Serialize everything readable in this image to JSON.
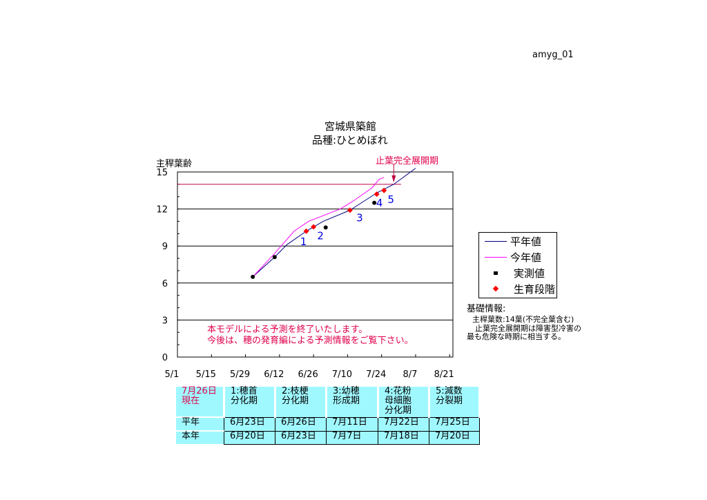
{
  "page_id": "amyg_01",
  "chart_data": {
    "type": "line",
    "title": "宮城県築館",
    "subtitle": "品種:ひとめぼれ",
    "ylabel": "主稈葉齢",
    "ylim": [
      0,
      15
    ],
    "yticks": [
      "0",
      "3",
      "6",
      "9",
      "12",
      "15"
    ],
    "xticks": [
      "5/1",
      "5/15",
      "5/29",
      "6/12",
      "6/26",
      "7/10",
      "7/24",
      "8/7",
      "8/21"
    ],
    "xlim": [
      "5/1",
      "8/21"
    ],
    "grid": "horizontal",
    "colors": {
      "normal": "#000080",
      "this_year": "#ff00ff",
      "measured": "#000000",
      "stage": "#ff0000",
      "threshold": "#c00040",
      "note": "#e0004a"
    },
    "series": [
      {
        "name": "平年値",
        "points": [
          [
            "6/1",
            6.5
          ],
          [
            "6/10",
            8.1
          ],
          [
            "6/15",
            9.1
          ],
          [
            "6/23",
            10.2
          ],
          [
            "6/30",
            11.0
          ],
          [
            "7/11",
            11.9
          ],
          [
            "7/22",
            13.3
          ],
          [
            "7/29",
            14.0
          ],
          [
            "8/7",
            15.3
          ]
        ]
      },
      {
        "name": "今年値",
        "points": [
          [
            "6/1",
            6.5
          ],
          [
            "6/10",
            8.4
          ],
          [
            "6/14",
            9.3
          ],
          [
            "6/18",
            10.2
          ],
          [
            "6/24",
            11.0
          ],
          [
            "7/7",
            12.0
          ],
          [
            "7/12",
            12.6
          ],
          [
            "7/20",
            13.7
          ],
          [
            "7/23",
            14.4
          ],
          [
            "7/25",
            14.55
          ]
        ]
      }
    ],
    "measured": {
      "name": "実測値",
      "points": [
        [
          "6/1",
          6.5
        ],
        [
          "6/10",
          8.1
        ],
        [
          "7/1",
          10.5
        ],
        [
          "7/21",
          12.5
        ]
      ]
    },
    "stages": {
      "name": "生育段階",
      "points": [
        [
          "6/23",
          10.2,
          "1"
        ],
        [
          "6/26",
          10.55,
          "2"
        ],
        [
          "7/11",
          11.9,
          "3"
        ],
        [
          "7/22",
          13.2,
          "4"
        ],
        [
          "7/25",
          13.5,
          "5"
        ]
      ]
    },
    "threshold": {
      "value": 14,
      "label": "止葉完全展開期",
      "arrow_date": "7/29"
    },
    "annotation": [
      "本モデルによる予測を終了いたします。",
      "今後は、穂の発育編による予測情報をご覧下さい。"
    ],
    "legend_position": "right"
  },
  "info": {
    "heading": "基礎情報:",
    "line1": "主稈葉数:14葉(不完全葉含む)",
    "line2": "止葉完全展開期は障害型冷害の",
    "line3": "最も危険な時期に相当する。"
  },
  "table": {
    "corner": [
      "7月26日",
      "現在"
    ],
    "headers": [
      [
        "1:穂首",
        "分化期"
      ],
      [
        "2:枝梗",
        "分化期"
      ],
      [
        "3:幼穂",
        "形成期"
      ],
      [
        "4:花粉",
        "母細胞",
        "分化期"
      ],
      [
        "5:減数",
        "分裂期"
      ]
    ],
    "rows": [
      {
        "label": "平年",
        "values": [
          "6月23日",
          "6月26日",
          "7月11日",
          "7月22日",
          "7月25日"
        ]
      },
      {
        "label": "本年",
        "values": [
          "6月20日",
          "6月23日",
          "7月7日",
          "7月18日",
          "7月20日"
        ]
      }
    ]
  }
}
